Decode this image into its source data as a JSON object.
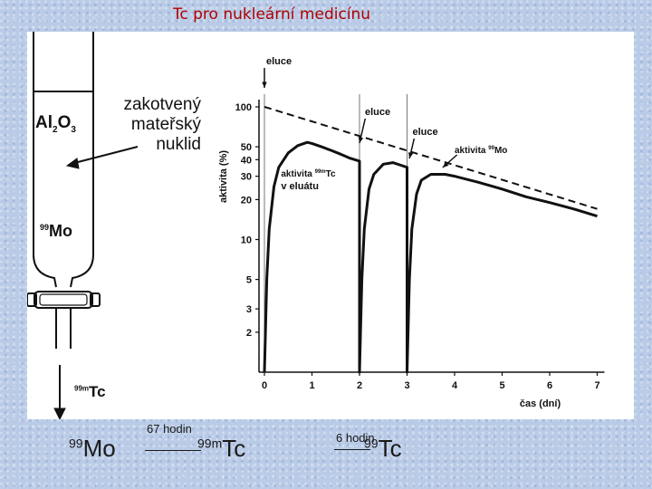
{
  "slide": {
    "title": "Tc pro nukleární medicínu"
  },
  "column": {
    "adsorbent": {
      "base": "Al",
      "sub1": "2",
      "mid": "O",
      "sub2": "3"
    },
    "parent_label": [
      "zakotvený",
      "mateřský",
      "nuklid"
    ],
    "mo_label": {
      "mass": "99",
      "symbol": "Mo"
    },
    "outlet_label": {
      "mass": "99m",
      "symbol": "Tc"
    }
  },
  "chart": {
    "ylabel": "aktivita (%)",
    "xlabel": "čas (dní)",
    "annotations": {
      "elution": "eluce",
      "tc_activity_line1": "aktivita ",
      "tc_mass": "99m",
      "tc_symbol": "Tc",
      "tc_activity_line2": "v eluátu",
      "mo_activity": "aktivita ",
      "mo_mass": "99",
      "mo_symbol": "Mo"
    }
  },
  "chart_data": {
    "type": "line",
    "xlabel": "čas (dní)",
    "ylabel": "aktivita (%)",
    "y_scale": "log",
    "xlim": [
      0,
      7
    ],
    "ylim": [
      1,
      100
    ],
    "x_ticks": [
      "0",
      "1",
      "2",
      "3",
      "4",
      "5",
      "6",
      "7"
    ],
    "y_ticks": [
      "100",
      "50",
      "40",
      "30",
      "20",
      "10",
      "5",
      "3",
      "2"
    ],
    "elution_times": [
      0,
      2,
      3
    ],
    "series": [
      {
        "name": "aktivita 99Mo",
        "style": "dashed",
        "x": [
          0,
          7
        ],
        "y": [
          100,
          17
        ]
      },
      {
        "name": "aktivita 99mTc v eluátu",
        "style": "solid",
        "x": [
          0,
          0.05,
          0.1,
          0.2,
          0.3,
          0.5,
          0.7,
          0.9,
          1.0,
          1.2,
          1.4,
          1.6,
          1.8,
          2.0,
          2.0,
          2.05,
          2.1,
          2.2,
          2.3,
          2.5,
          2.7,
          2.9,
          3.0,
          3.0,
          3.05,
          3.1,
          3.2,
          3.3,
          3.5,
          3.8,
          4.0,
          4.5,
          5.0,
          5.5,
          6.0,
          6.5,
          7.0
        ],
        "y": [
          1,
          5,
          12,
          25,
          35,
          45,
          51,
          54,
          53,
          50,
          47,
          44,
          41,
          39,
          1,
          5,
          12,
          24,
          31,
          37,
          38,
          36,
          35,
          1,
          5,
          12,
          22,
          28,
          31,
          31,
          30,
          27,
          24,
          21,
          19,
          17,
          15
        ]
      }
    ]
  },
  "captions": {
    "mo": {
      "mass": "99",
      "symbol": "Mo"
    },
    "half_life_67": "67 hodin",
    "tc99m": {
      "mass": "99m",
      "symbol": "Tc"
    },
    "half_life_6": "6 hodin",
    "tc99": {
      "mass": "99",
      "symbol": "Tc"
    }
  }
}
